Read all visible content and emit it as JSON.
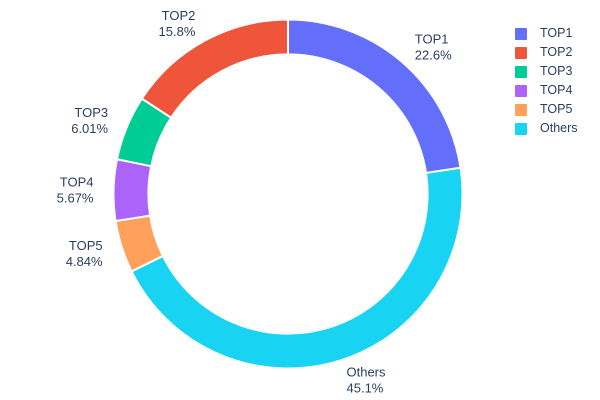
{
  "chart_data": {
    "type": "pie",
    "subtype": "donut",
    "title": "",
    "labels": [
      "TOP1",
      "TOP2",
      "TOP3",
      "TOP4",
      "TOP5",
      "Others"
    ],
    "values": [
      22.6,
      15.8,
      6.01,
      5.67,
      4.84,
      45.1
    ],
    "percent_labels": [
      "22.6%",
      "15.8%",
      "6.01%",
      "5.67%",
      "4.84%",
      "45.1%"
    ],
    "colors": [
      "#636EFA",
      "#EF553B",
      "#00CC96",
      "#AB63FA",
      "#FFA15A",
      "#19D3F3"
    ],
    "hole_ratio": 0.8,
    "slice_border_color": "#ffffff",
    "text_color": "#2a3f5f",
    "label_position": "outside",
    "clockwise_order_from_top": [
      "TOP1",
      "Others",
      "TOP5",
      "TOP4",
      "TOP3",
      "TOP2"
    ],
    "legend": {
      "position": "right",
      "entries": [
        "TOP1",
        "TOP2",
        "TOP3",
        "TOP4",
        "TOP5",
        "Others"
      ]
    }
  }
}
